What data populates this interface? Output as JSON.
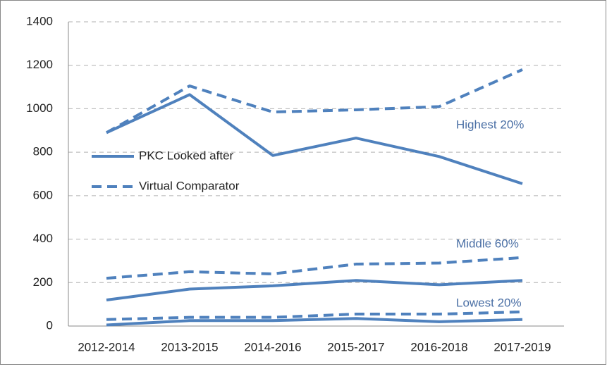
{
  "chart_data": {
    "type": "line",
    "categories": [
      "2012-2014",
      "2013-2015",
      "2014-2016",
      "2015-2017",
      "2016-2018",
      "2017-2019"
    ],
    "color": "#4f81bd",
    "legend": [
      {
        "name": "PKC Looked after",
        "dashed": false
      },
      {
        "name": "Virtual Comparator",
        "dashed": true
      }
    ],
    "bands": [
      {
        "label": "Highest 20%",
        "series": [
          {
            "values": [
              890,
              1065,
              785,
              865,
              780,
              655
            ]
          },
          {
            "values": [
              890,
              1105,
              985,
              995,
              1010,
              1180
            ]
          }
        ]
      },
      {
        "label": "Middle 60%",
        "series": [
          {
            "values": [
              120,
              170,
              185,
              210,
              190,
              210
            ]
          },
          {
            "values": [
              220,
              250,
              240,
              285,
              290,
              315
            ]
          }
        ]
      },
      {
        "label": "Lowest 20%",
        "series": [
          {
            "values": [
              5,
              25,
              25,
              35,
              20,
              30
            ]
          },
          {
            "values": [
              30,
              40,
              40,
              55,
              55,
              65
            ]
          }
        ]
      }
    ],
    "ylim": [
      0,
      1400
    ],
    "yticks": [
      0,
      200,
      400,
      600,
      800,
      1000,
      1200,
      1400
    ],
    "grid": true
  }
}
